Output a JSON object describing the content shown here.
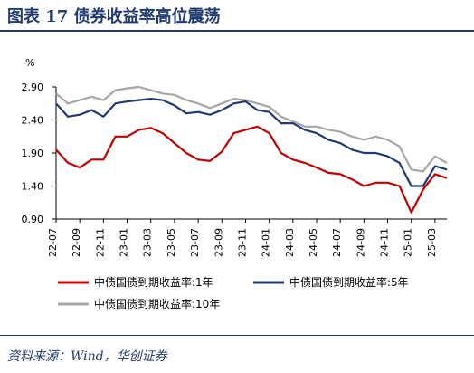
{
  "header": {
    "figure_title": "图表 17  债券收益率高位震荡"
  },
  "footer": {
    "source": "资料来源：Wind，华创证券"
  },
  "chart_data": {
    "type": "line",
    "title": "",
    "xlabel": "",
    "ylabel": "%",
    "ylim": [
      0.9,
      2.9
    ],
    "yticks": [
      "0.90",
      "1.40",
      "1.90",
      "2.40",
      "2.90"
    ],
    "xticks": [
      "22-07",
      "22-09",
      "22-11",
      "23-01",
      "23-03",
      "23-05",
      "23-07",
      "23-09",
      "23-11",
      "24-01",
      "24-03",
      "24-05",
      "24-07",
      "24-09",
      "24-11",
      "25-01",
      "25-03"
    ],
    "x": [
      "22-07",
      "22-08",
      "22-09",
      "22-10",
      "22-11",
      "22-12",
      "23-01",
      "23-02",
      "23-03",
      "23-04",
      "23-05",
      "23-06",
      "23-07",
      "23-08",
      "23-09",
      "23-10",
      "23-11",
      "23-12",
      "24-01",
      "24-02",
      "24-03",
      "24-04",
      "24-05",
      "24-06",
      "24-07",
      "24-08",
      "24-09",
      "24-10",
      "24-11",
      "24-12",
      "25-01",
      "25-02",
      "25-03",
      "25-04"
    ],
    "series": [
      {
        "name": "中债国债到期收益率:1年",
        "color": "#c00000",
        "values": [
          1.95,
          1.75,
          1.68,
          1.8,
          1.8,
          2.15,
          2.15,
          2.25,
          2.28,
          2.2,
          2.05,
          1.9,
          1.8,
          1.78,
          1.92,
          2.2,
          2.25,
          2.3,
          2.2,
          1.9,
          1.8,
          1.75,
          1.68,
          1.6,
          1.58,
          1.5,
          1.4,
          1.45,
          1.45,
          1.4,
          1.0,
          1.35,
          1.58,
          1.52
        ]
      },
      {
        "name": "中债国债到期收益率:5年",
        "color": "#1f3a70",
        "values": [
          2.65,
          2.45,
          2.48,
          2.55,
          2.45,
          2.65,
          2.68,
          2.7,
          2.72,
          2.7,
          2.62,
          2.5,
          2.52,
          2.48,
          2.55,
          2.65,
          2.68,
          2.55,
          2.52,
          2.35,
          2.35,
          2.25,
          2.2,
          2.1,
          2.05,
          1.95,
          1.9,
          1.9,
          1.85,
          1.75,
          1.4,
          1.4,
          1.7,
          1.65
        ]
      },
      {
        "name": "中债国债到期收益率:10年",
        "color": "#a6a6a6",
        "values": [
          2.8,
          2.65,
          2.7,
          2.75,
          2.7,
          2.85,
          2.88,
          2.9,
          2.85,
          2.8,
          2.78,
          2.7,
          2.65,
          2.58,
          2.65,
          2.72,
          2.7,
          2.65,
          2.6,
          2.45,
          2.38,
          2.3,
          2.3,
          2.25,
          2.22,
          2.15,
          2.1,
          2.15,
          2.1,
          2.0,
          1.65,
          1.62,
          1.85,
          1.75
        ]
      }
    ],
    "legend": {
      "placement": "bottom"
    },
    "grid": false
  }
}
